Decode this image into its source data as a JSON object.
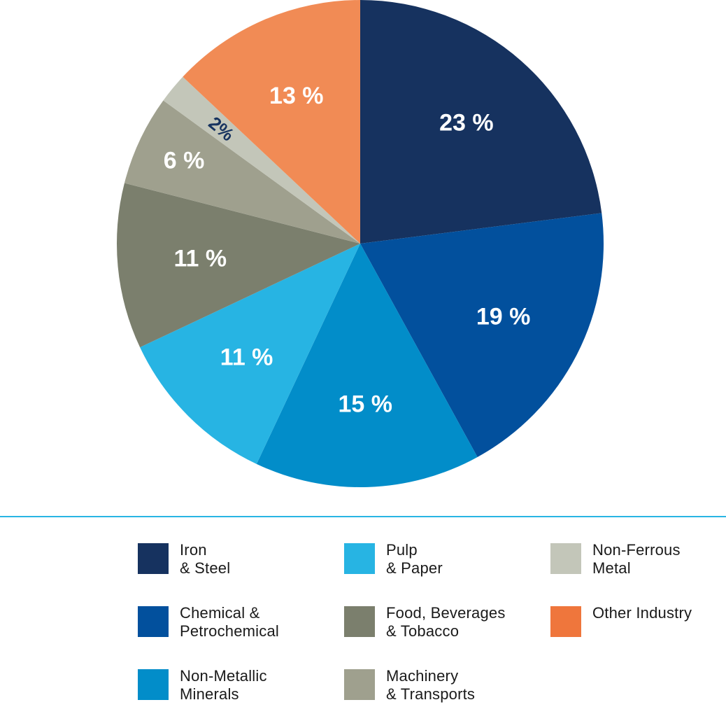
{
  "chart_data": {
    "type": "pie",
    "title": "",
    "slices": [
      {
        "name": "Iron & Steel",
        "label_lines": [
          "Iron",
          "& Steel"
        ],
        "value": 23,
        "label": "23 %",
        "color": "#16325f",
        "label_color": "#ffffff"
      },
      {
        "name": "Chemical & Petrochemical",
        "label_lines": [
          "Chemical &",
          "Petrochemical"
        ],
        "value": 19,
        "label": "19 %",
        "color": "#02509d",
        "label_color": "#ffffff"
      },
      {
        "name": "Non-Metallic Minerals",
        "label_lines": [
          "Non-Metallic",
          "Minerals"
        ],
        "value": 15,
        "label": "15 %",
        "color": "#028dc9",
        "label_color": "#ffffff"
      },
      {
        "name": "Pulp & Paper",
        "label_lines": [
          "Pulp",
          "& Paper"
        ],
        "value": 11,
        "label": "11 %",
        "color": "#27b4e3",
        "label_color": "#ffffff"
      },
      {
        "name": "Food, Beverages & Tobacco",
        "label_lines": [
          "Food, Beverages",
          "& Tobacco"
        ],
        "value": 11,
        "label": "11 %",
        "color": "#7b7f6d",
        "label_color": "#ffffff"
      },
      {
        "name": "Machinery & Transports",
        "label_lines": [
          "Machinery",
          "& Transports"
        ],
        "value": 6,
        "label": "6 %",
        "color": "#9fa08e",
        "label_color": "#ffffff"
      },
      {
        "name": "Non-Ferrous Metal",
        "label_lines": [
          "Non-Ferrous",
          "Metal"
        ],
        "value": 2,
        "label": "2%",
        "color": "#c3c6b9",
        "label_color": "#16325f"
      },
      {
        "name": "Other Industry",
        "label_lines": [
          "Other Industry"
        ],
        "value": 13,
        "label": "13 %",
        "color": "#f18b55",
        "legend_color": "#ef763c",
        "label_color": "#ffffff"
      }
    ],
    "legend_placement": "bottom",
    "legend_columns": [
      [
        "Iron & Steel",
        "Chemical & Petrochemical",
        "Non-Metallic Minerals"
      ],
      [
        "Pulp & Paper",
        "Food, Beverages & Tobacco",
        "Machinery & Transports"
      ],
      [
        "Non-Ferrous Metal",
        "Other Industry"
      ]
    ]
  }
}
